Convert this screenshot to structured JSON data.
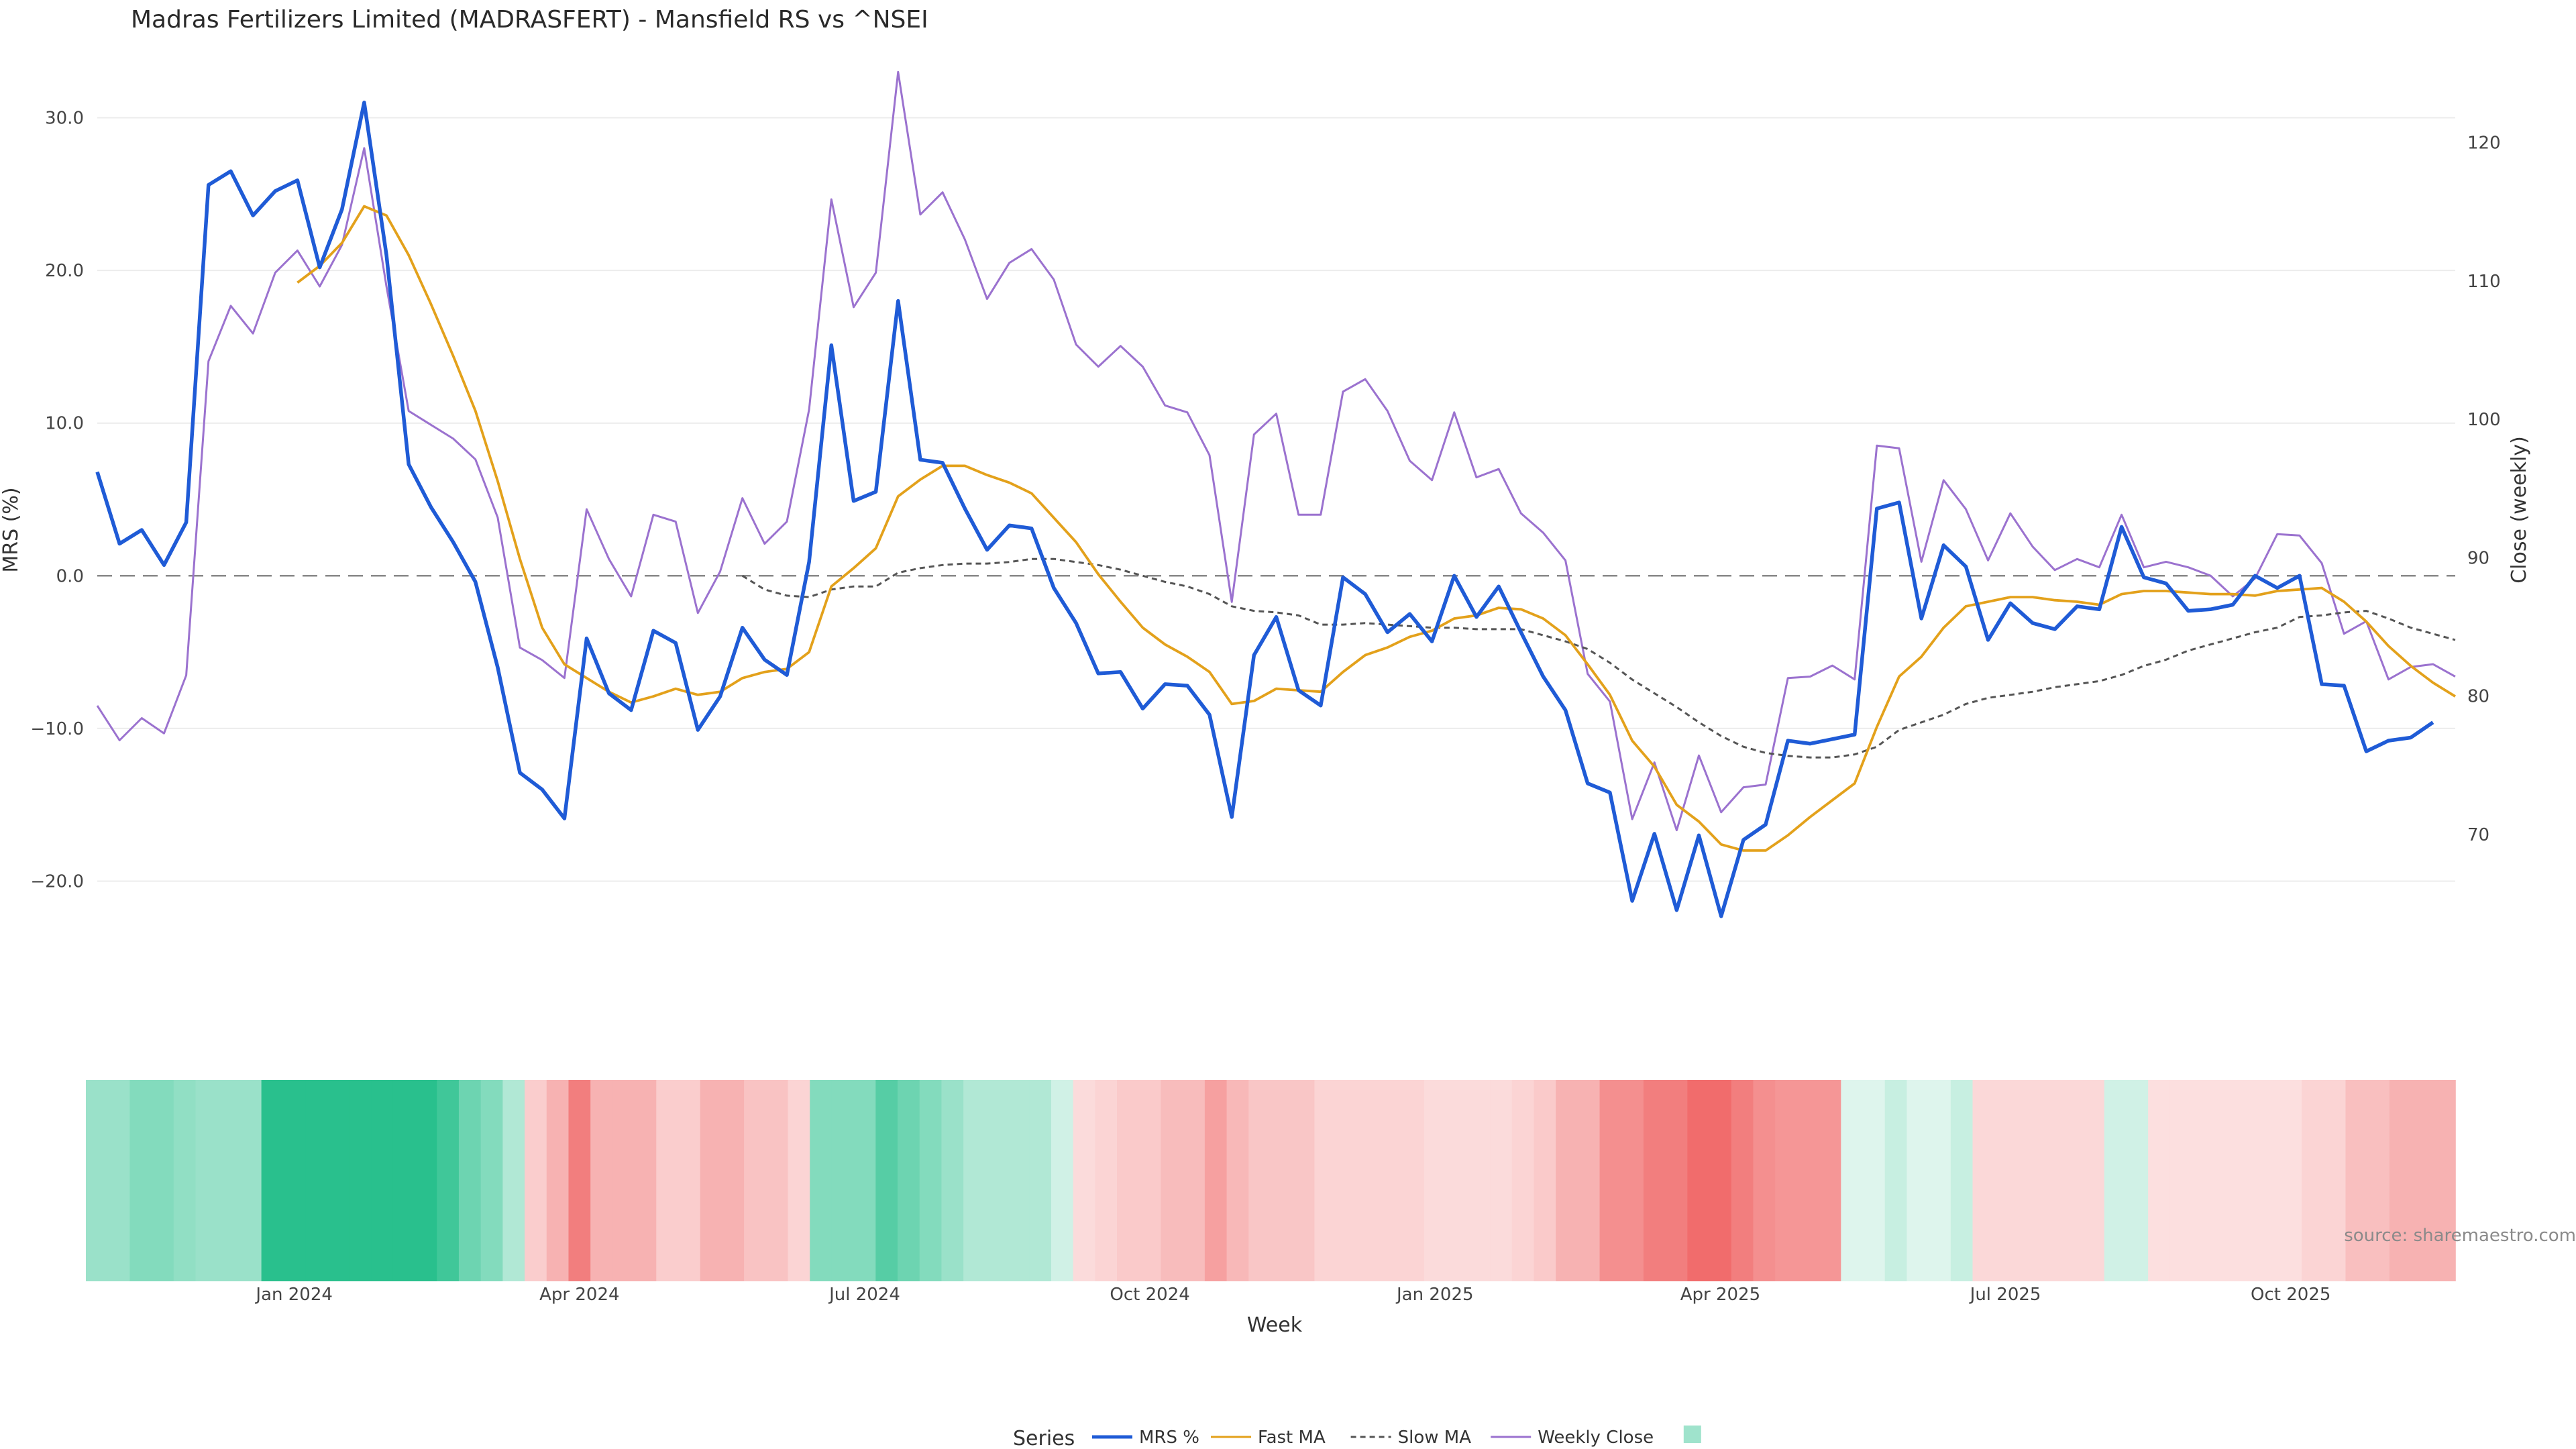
{
  "chart_data": {
    "type": "line",
    "title": "Madras Fertilizers Limited (MADRASFERT) - Mansfield RS vs ^NSEI",
    "xlabel": "Week",
    "ylabel_left": "MRS (%)",
    "ylabel_right": "Close (weekly)",
    "ylim_left": [
      -26,
      32
    ],
    "ylim_right": [
      60,
      124
    ],
    "y_ticks_left": [
      30.0,
      20.0,
      10.0,
      0.0,
      -10.0,
      -20.0
    ],
    "y_tick_labels_left": [
      "30.0",
      "20.0",
      "10.0",
      "0.0",
      "−10.0",
      "−20.0"
    ],
    "y_ticks_right": [
      120,
      110,
      100,
      90,
      80,
      70
    ],
    "y_tick_labels_right": [
      "120",
      "110",
      "100",
      "90",
      "80",
      "70"
    ],
    "x_ticks": [
      {
        "label": "Jan 2024",
        "week": 9
      },
      {
        "label": "Apr 2024",
        "week": 22
      },
      {
        "label": "Jul 2024",
        "week": 35
      },
      {
        "label": "Oct 2024",
        "week": 48
      },
      {
        "label": "Jan 2025",
        "week": 61
      },
      {
        "label": "Apr 2025",
        "week": 74
      },
      {
        "label": "Jul 2025",
        "week": 87
      },
      {
        "label": "Oct 2025",
        "week": 100
      }
    ],
    "num_weeks": 107,
    "series": [
      {
        "name": "MRS %",
        "axis": "left",
        "color": "#1f5bd6",
        "values": [
          6.8,
          2.1,
          3,
          0.7,
          3.5,
          25.6,
          26.5,
          23.6,
          25.2,
          25.9,
          20.2,
          24,
          31,
          21,
          7.3,
          4.5,
          2.2,
          -0.4,
          -6,
          -12.9,
          -14,
          -15.9,
          -4.1,
          -7.7,
          -8.8,
          -3.6,
          -4.4,
          -10.1,
          -7.9,
          -3.4,
          -5.5,
          -6.5,
          0.9,
          15.1,
          4.9,
          5.5,
          18,
          7.6,
          7.4,
          4.4,
          1.7,
          3.3,
          3.1,
          -0.8,
          -3.1,
          -6.4,
          -6.3,
          -8.7,
          -7.1,
          -7.2,
          -9.1,
          -15.8,
          -5.2,
          -2.7,
          -7.5,
          -8.5,
          -0.1,
          -1.2,
          -3.7,
          -2.5,
          -4.3,
          0,
          -2.7,
          -0.7,
          -3.7,
          -6.6,
          -8.8,
          -13.6,
          -14.2,
          -21.3,
          -16.9,
          -21.9,
          -17,
          -22.3,
          -17.3,
          -16.3,
          -10.8,
          -11,
          -10.7,
          -10.4,
          4.4,
          4.8,
          -2.8,
          2,
          0.6,
          -4.2,
          -1.8,
          -3.1,
          -3.5,
          -2,
          -2.2,
          3.2,
          -0.1,
          -0.5,
          -2.3,
          -2.2,
          -1.9,
          0,
          -0.8,
          0,
          -7.1,
          -7.2,
          -11.5,
          -10.8,
          -10.6,
          -9.6
        ]
      },
      {
        "name": "Fast MA",
        "axis": "left",
        "color": "#e3a11b",
        "values": [
          null,
          null,
          null,
          null,
          null,
          null,
          null,
          null,
          null,
          19.2,
          20.3,
          21.8,
          24.2,
          23.6,
          21,
          17.8,
          14.4,
          10.8,
          6.2,
          1.1,
          -3.4,
          -5.8,
          -6.7,
          -7.6,
          -8.3,
          -7.9,
          -7.4,
          -7.8,
          -7.6,
          -6.7,
          -6.3,
          -6.1,
          -5,
          -0.7,
          0.5,
          1.8,
          5.2,
          6.3,
          7.2,
          7.2,
          6.6,
          6.1,
          5.4,
          3.8,
          2.2,
          0.1,
          -1.7,
          -3.4,
          -4.5,
          -5.3,
          -6.3,
          -8.4,
          -8.2,
          -7.4,
          -7.5,
          -7.6,
          -6.3,
          -5.2,
          -4.7,
          -4,
          -3.6,
          -2.8,
          -2.6,
          -2.1,
          -2.2,
          -2.8,
          -3.9,
          -5.8,
          -7.8,
          -10.8,
          -12.5,
          -15,
          -16.1,
          -17.6,
          -18,
          -18,
          -17,
          -15.8,
          -14.7,
          -13.6,
          -9.9,
          -6.6,
          -5.3,
          -3.4,
          -2,
          -1.7,
          -1.4,
          -1.4,
          -1.6,
          -1.7,
          -1.9,
          -1.2,
          -1,
          -1,
          -1.1,
          -1.2,
          -1.2,
          -1.3,
          -1,
          -0.9,
          -0.8,
          -1.7,
          -3,
          -4.6,
          -5.9,
          -7,
          -7.9
        ]
      },
      {
        "name": "Slow MA",
        "axis": "left",
        "color": "#555555",
        "dash": "8,6",
        "values": [
          null,
          null,
          null,
          null,
          null,
          null,
          null,
          null,
          null,
          null,
          null,
          null,
          null,
          null,
          null,
          null,
          null,
          null,
          null,
          null,
          null,
          null,
          null,
          null,
          null,
          null,
          null,
          null,
          null,
          0,
          -0.9,
          -1.3,
          -1.4,
          -0.9,
          -0.7,
          -0.7,
          0.2,
          0.5,
          0.7,
          0.8,
          0.8,
          0.9,
          1.1,
          1.1,
          0.9,
          0.7,
          0.4,
          0,
          -0.4,
          -0.7,
          -1.2,
          -2,
          -2.3,
          -2.4,
          -2.6,
          -3.2,
          -3.2,
          -3.1,
          -3.2,
          -3.3,
          -3.4,
          -3.4,
          -3.5,
          -3.5,
          -3.5,
          -3.9,
          -4.3,
          -4.8,
          -5.7,
          -6.8,
          -7.7,
          -8.6,
          -9.6,
          -10.5,
          -11.2,
          -11.6,
          -11.8,
          -11.9,
          -11.9,
          -11.7,
          -11.2,
          -10.1,
          -9.6,
          -9.1,
          -8.4,
          -8,
          -7.8,
          -7.6,
          -7.3,
          -7.1,
          -6.9,
          -6.5,
          -5.9,
          -5.5,
          -4.9,
          -4.5,
          -4.1,
          -3.7,
          -3.4,
          -2.7,
          -2.6,
          -2.4,
          -2.3,
          -2.8,
          -3.4,
          -3.8,
          -4.2
        ]
      },
      {
        "name": "Weekly Close",
        "axis": "right",
        "color": "#9b72cf",
        "values": [
          79.3,
          76.8,
          78.4,
          77.3,
          81.5,
          104.2,
          108.2,
          106.2,
          110.6,
          112.2,
          109.6,
          112.6,
          119.6,
          109.6,
          100.6,
          99.6,
          98.6,
          97.1,
          92.9,
          83.5,
          82.6,
          81.3,
          93.5,
          89.9,
          87.2,
          93.1,
          92.6,
          86,
          89,
          94.3,
          91,
          92.6,
          100.7,
          115.9,
          108.1,
          110.6,
          125.1,
          114.8,
          116.4,
          113,
          108.7,
          111.3,
          112.3,
          110.1,
          105.4,
          103.8,
          105.3,
          103.8,
          101,
          100.5,
          97.4,
          86.8,
          98.9,
          100.4,
          93.1,
          93.1,
          102,
          102.9,
          100.6,
          97,
          95.6,
          100.5,
          95.8,
          96.4,
          93.2,
          91.8,
          89.8,
          81.6,
          79.6,
          71.1,
          75.2,
          70.3,
          75.7,
          71.6,
          73.4,
          73.6,
          81.3,
          81.4,
          82.2,
          81.2,
          98.1,
          97.9,
          89.7,
          95.6,
          93.5,
          89.8,
          93.2,
          90.8,
          89.1,
          89.9,
          89.3,
          93.1,
          89.3,
          89.7,
          89.3,
          88.7,
          87.2,
          88.5,
          91.7,
          91.6,
          89.6,
          84.5,
          85.4,
          81.2,
          82.1,
          82.3,
          81.4
        ]
      }
    ],
    "legend": {
      "title": "Series",
      "position": "bottom-center",
      "entries": [
        "MRS %",
        "Fast MA",
        "Slow MA",
        "Weekly Close"
      ]
    },
    "heatmap": {
      "description_none": "",
      "values": [
        2,
        2,
        2.5,
        2.5,
        2.2,
        2,
        2,
        2,
        4.5,
        6,
        6,
        6,
        6,
        6,
        6,
        6,
        4,
        3,
        2.5,
        1.5,
        -1.2,
        -2,
        -3.5,
        -2,
        -2,
        -2,
        -1.2,
        -1.2,
        -2,
        -2,
        -1.5,
        -1.5,
        -1,
        2.5,
        2.5,
        2.5,
        3.5,
        3,
        2.5,
        2,
        1.5,
        1.5,
        1.5,
        1.5,
        0.8,
        -0.8,
        -1,
        -1.3,
        -1.3,
        -1.7,
        -1.7,
        -2.5,
        -1.8,
        -1.4,
        -1.4,
        -1.4,
        -1,
        -1,
        -1,
        -1,
        -1,
        -0.8,
        -0.8,
        -0.8,
        -0.8,
        -1,
        -1.3,
        -2,
        -2,
        -3,
        -3,
        -3.5,
        -3.5,
        -4,
        -4,
        -3.5,
        -3,
        -2.8,
        -2.8,
        -2.8,
        0.5,
        0.5,
        1,
        0.5,
        0.5,
        1,
        -0.9,
        -0.9,
        -0.9,
        -0.9,
        -0.9,
        -0.9,
        0.8,
        0.8,
        -0.7,
        -0.7,
        -0.7,
        -0.7,
        -0.7,
        -0.7,
        -0.7,
        -1,
        -1,
        -1.6,
        -1.6,
        -2,
        -2,
        -2
      ]
    },
    "source": "source: sharemaestro.com",
    "colors": {
      "positive": "#29c08d",
      "negative": "#ef5b5b",
      "grid": "#ececec",
      "zero_line": "#888888"
    }
  }
}
